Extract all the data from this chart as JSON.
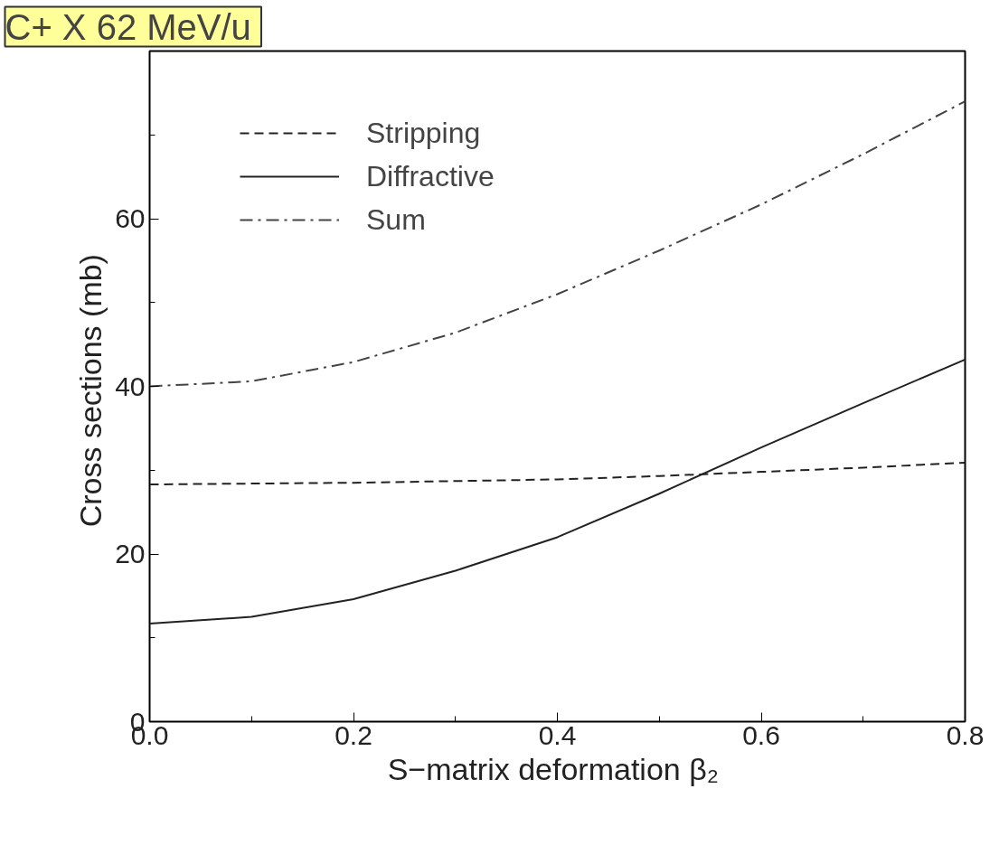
{
  "chart_data": {
    "type": "line",
    "title": "C+ X  62 MeV/u",
    "xlabel": "S−matrix  deformation β₂",
    "ylabel": "Cross sections  (mb)",
    "x": [
      0.0,
      0.1,
      0.2,
      0.3,
      0.4,
      0.5,
      0.6,
      0.7,
      0.8
    ],
    "series": [
      {
        "name": "Stripping",
        "color": "#222222",
        "line_style": "dashed",
        "values": [
          28.3,
          28.4,
          28.5,
          28.7,
          28.9,
          29.3,
          29.8,
          30.3,
          30.9
        ]
      },
      {
        "name": "Diffractive",
        "color": "#222222",
        "line_style": "solid",
        "values": [
          11.7,
          12.5,
          14.6,
          18.0,
          22.0,
          27.2,
          32.7,
          38.0,
          43.2
        ]
      },
      {
        "name": "Sum",
        "color": "#444444",
        "line_style": "dashdot",
        "values": [
          40.0,
          40.6,
          42.9,
          46.4,
          51.0,
          56.2,
          61.7,
          67.7,
          74.0
        ]
      }
    ],
    "xlim": [
      0,
      0.8
    ],
    "ylim": [
      0,
      80
    ],
    "xticks": [
      {
        "value": 0,
        "label": "0.0"
      },
      0.2,
      0.4,
      0.6,
      0.8
    ],
    "yticks": [
      0,
      20,
      40,
      60
    ],
    "grid": false,
    "legend": "top left"
  }
}
